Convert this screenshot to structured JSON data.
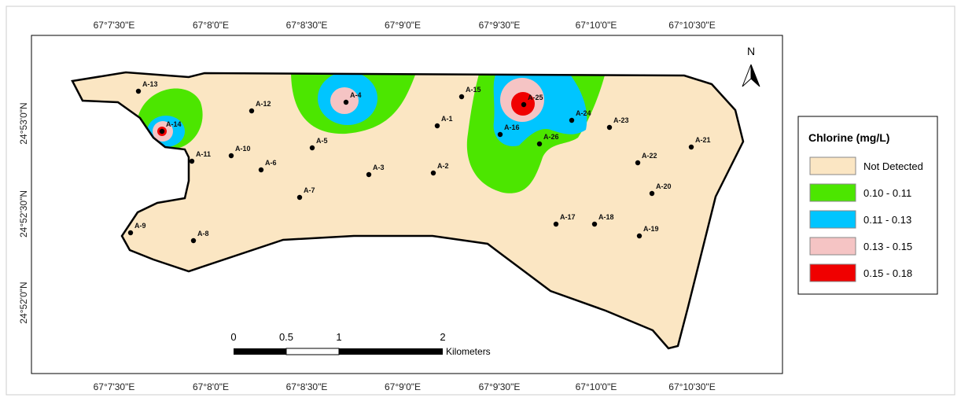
{
  "axes": {
    "top_labels": [
      "67°7'30\"E",
      "67°8'0\"E",
      "67°8'30\"E",
      "67°9'0\"E",
      "67°9'30\"E",
      "67°10'0\"E",
      "67°10'30\"E"
    ],
    "bottom_labels": [
      "67°7'30\"E",
      "67°8'0\"E",
      "67°8'30\"E",
      "67°9'0\"E",
      "67°9'30\"E",
      "67°10'0\"E",
      "67°10'30\"E"
    ],
    "left_labels": [
      "24°53'0\"N",
      "24°52'30\"N",
      "24°52'0\"N"
    ]
  },
  "stations": [
    "A-13",
    "A-14",
    "A-12",
    "A-11",
    "A-10",
    "A-6",
    "A-5",
    "A-7",
    "A-4",
    "A-3",
    "A-1",
    "A-2",
    "A-15",
    "A-16",
    "A-25",
    "A-26",
    "A-24",
    "A-23",
    "A-22",
    "A-21",
    "A-20",
    "A-19",
    "A-18",
    "A-17",
    "A-9",
    "A-8"
  ],
  "legend": {
    "title": "Chlorine (mg/L)",
    "items": [
      {
        "label": "Not Detected",
        "color": "#fbe6c3"
      },
      {
        "label": "0.10 - 0.11",
        "color": "#4ce600"
      },
      {
        "label": "0.11 - 0.13",
        "color": "#00c5ff"
      },
      {
        "label": "0.13 - 0.15",
        "color": "#f5c4c4"
      },
      {
        "label": "0.15 - 0.18",
        "color": "#f00000"
      }
    ]
  },
  "scale_bar": {
    "labels": [
      "0",
      "0.5",
      "1",
      "2"
    ],
    "unit": "Kilometers"
  },
  "north": "N"
}
